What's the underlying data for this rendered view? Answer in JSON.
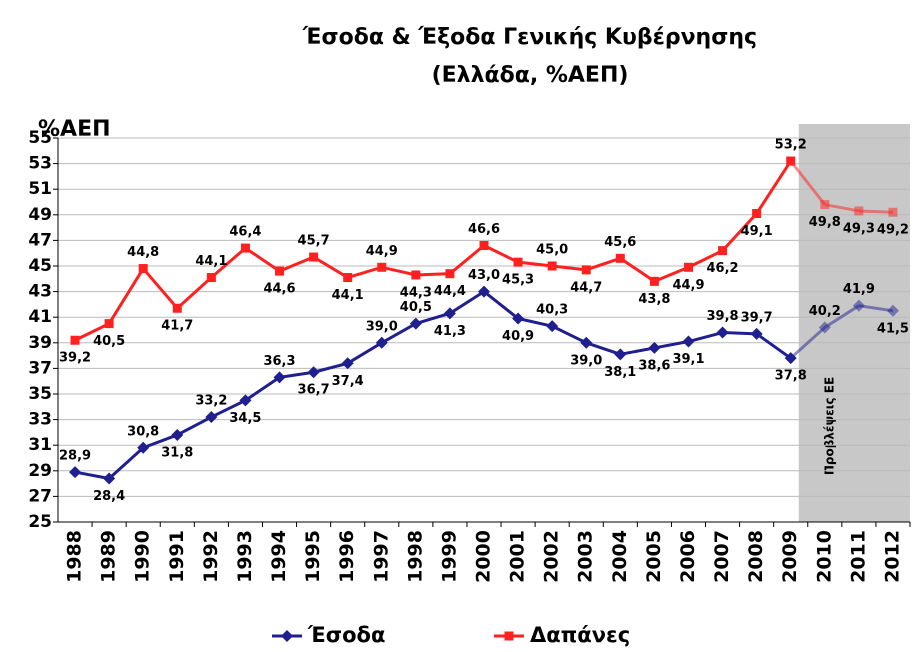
{
  "chart_data": {
    "type": "line",
    "title": "Έσοδα & Έξοδα Γενικής Κυβέρνησης",
    "subtitle": "(Ελλάδα, %ΑΕΠ)",
    "y_label": "%ΑΕΠ",
    "categories": [
      "1988",
      "1989",
      "1990",
      "1991",
      "1992",
      "1993",
      "1994",
      "1995",
      "1996",
      "1997",
      "1998",
      "1999",
      "2000",
      "2001",
      "2002",
      "2003",
      "2004",
      "2005",
      "2006",
      "2007",
      "2008",
      "2009",
      "2010",
      "2011",
      "2012"
    ],
    "series": [
      {
        "name": "Έσοδα",
        "color": "#1f1f8f",
        "values": [
          28.9,
          28.4,
          30.8,
          31.8,
          33.2,
          34.5,
          36.3,
          36.7,
          37.4,
          39.0,
          40.5,
          41.3,
          43.0,
          40.9,
          40.3,
          39.0,
          38.1,
          38.6,
          39.1,
          39.8,
          39.7,
          37.8,
          40.2,
          41.9,
          41.5
        ],
        "value_labels": [
          "28,9",
          "28,4",
          "30,8",
          "31,8",
          "33,2",
          "34,5",
          "36,3",
          "36,7",
          "37,4",
          "39,0",
          "40,5",
          "41,3",
          "43,0",
          "40,9",
          "40,3",
          "39,0",
          "38,1",
          "38,6",
          "39,1",
          "39,8",
          "39,7",
          "37,8",
          "40,2",
          "41,9",
          "41,5"
        ]
      },
      {
        "name": "Δαπάνες",
        "color": "#ff2020",
        "values": [
          39.2,
          40.5,
          44.8,
          41.7,
          44.1,
          46.4,
          44.6,
          45.7,
          44.1,
          44.9,
          44.3,
          44.4,
          46.6,
          45.3,
          45.0,
          44.7,
          45.6,
          43.8,
          44.9,
          46.2,
          49.1,
          53.2,
          49.8,
          49.3,
          49.2
        ],
        "value_labels": [
          "39,2",
          "40,5",
          "44,8",
          "41,7",
          "44,1",
          "46,4",
          "44,6",
          "45,7",
          "44,1",
          "44,9",
          "44,3",
          "44,4",
          "46,6",
          "45,3",
          "45,0",
          "44,7",
          "45,6",
          "43,8",
          "44,9",
          "46,2",
          "49,1",
          "53,2",
          "49,8",
          "49,3",
          "49,2"
        ]
      }
    ],
    "ylim": [
      25,
      55
    ],
    "yticks": [
      25,
      27,
      29,
      31,
      33,
      35,
      37,
      39,
      41,
      43,
      45,
      47,
      49,
      51,
      53,
      55
    ],
    "grid": true,
    "legend": "bottom",
    "annotation": {
      "text": "Προβλέψεις ΕΕ",
      "from": "2010"
    }
  }
}
